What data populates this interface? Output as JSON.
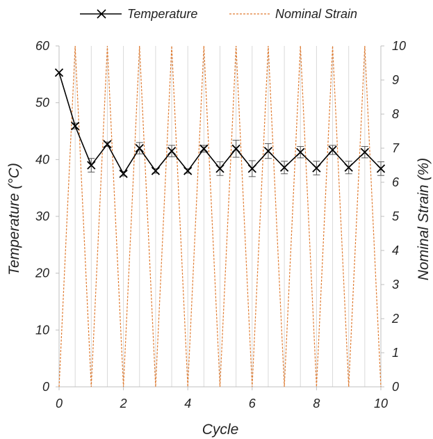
{
  "chart_data": {
    "type": "line",
    "title": "",
    "xlabel": "Cycle",
    "ylabel_left": "Temperature (°C)",
    "ylabel_right": "Nominal Strain (%)",
    "xlim": [
      0,
      10
    ],
    "ylim_left": [
      0,
      60
    ],
    "ylim_right": [
      0,
      10
    ],
    "x_ticks": [
      "0",
      "2",
      "4",
      "6",
      "8",
      "10"
    ],
    "y_left_ticks": [
      "0",
      "10",
      "20",
      "30",
      "40",
      "50",
      "60"
    ],
    "y_right_ticks": [
      "0",
      "1",
      "2",
      "3",
      "4",
      "5",
      "6",
      "7",
      "8",
      "9",
      "10"
    ],
    "grid": "vertical",
    "legend_position": "top",
    "series": [
      {
        "name": "Temperature",
        "axis": "left",
        "color": "#000000",
        "marker": "x",
        "x": [
          0,
          0.5,
          1,
          1.5,
          2,
          2.5,
          3,
          3.5,
          4,
          4.5,
          5,
          5.5,
          6,
          6.5,
          7,
          7.5,
          8,
          8.5,
          9,
          9.5,
          10
        ],
        "y": [
          55.3,
          45.9,
          39.0,
          42.7,
          37.5,
          42.0,
          38.0,
          41.5,
          38.0,
          41.9,
          38.4,
          41.9,
          38.4,
          41.5,
          38.6,
          41.3,
          38.5,
          41.7,
          38.6,
          41.3,
          38.4
        ],
        "error": [
          0,
          0.5,
          1.2,
          0.4,
          0.4,
          1.0,
          0.4,
          1.0,
          0.4,
          0.6,
          1.2,
          1.5,
          1.4,
          1.3,
          1.1,
          1.0,
          1.2,
          0.8,
          1.1,
          1.0,
          1.2
        ]
      },
      {
        "name": "Nominal Strain",
        "axis": "right",
        "color": "#e07b30",
        "dashed": true,
        "x": [
          0,
          0.5,
          1,
          1.5,
          2,
          2.5,
          3,
          3.5,
          4,
          4.5,
          5,
          5.5,
          6,
          6.5,
          7,
          7.5,
          8,
          8.5,
          9,
          9.5,
          10
        ],
        "y": [
          0,
          10,
          0,
          10,
          0,
          10,
          0,
          10,
          0,
          10,
          0,
          10,
          0,
          10,
          0,
          10,
          0,
          10,
          0,
          10,
          0
        ]
      }
    ]
  }
}
